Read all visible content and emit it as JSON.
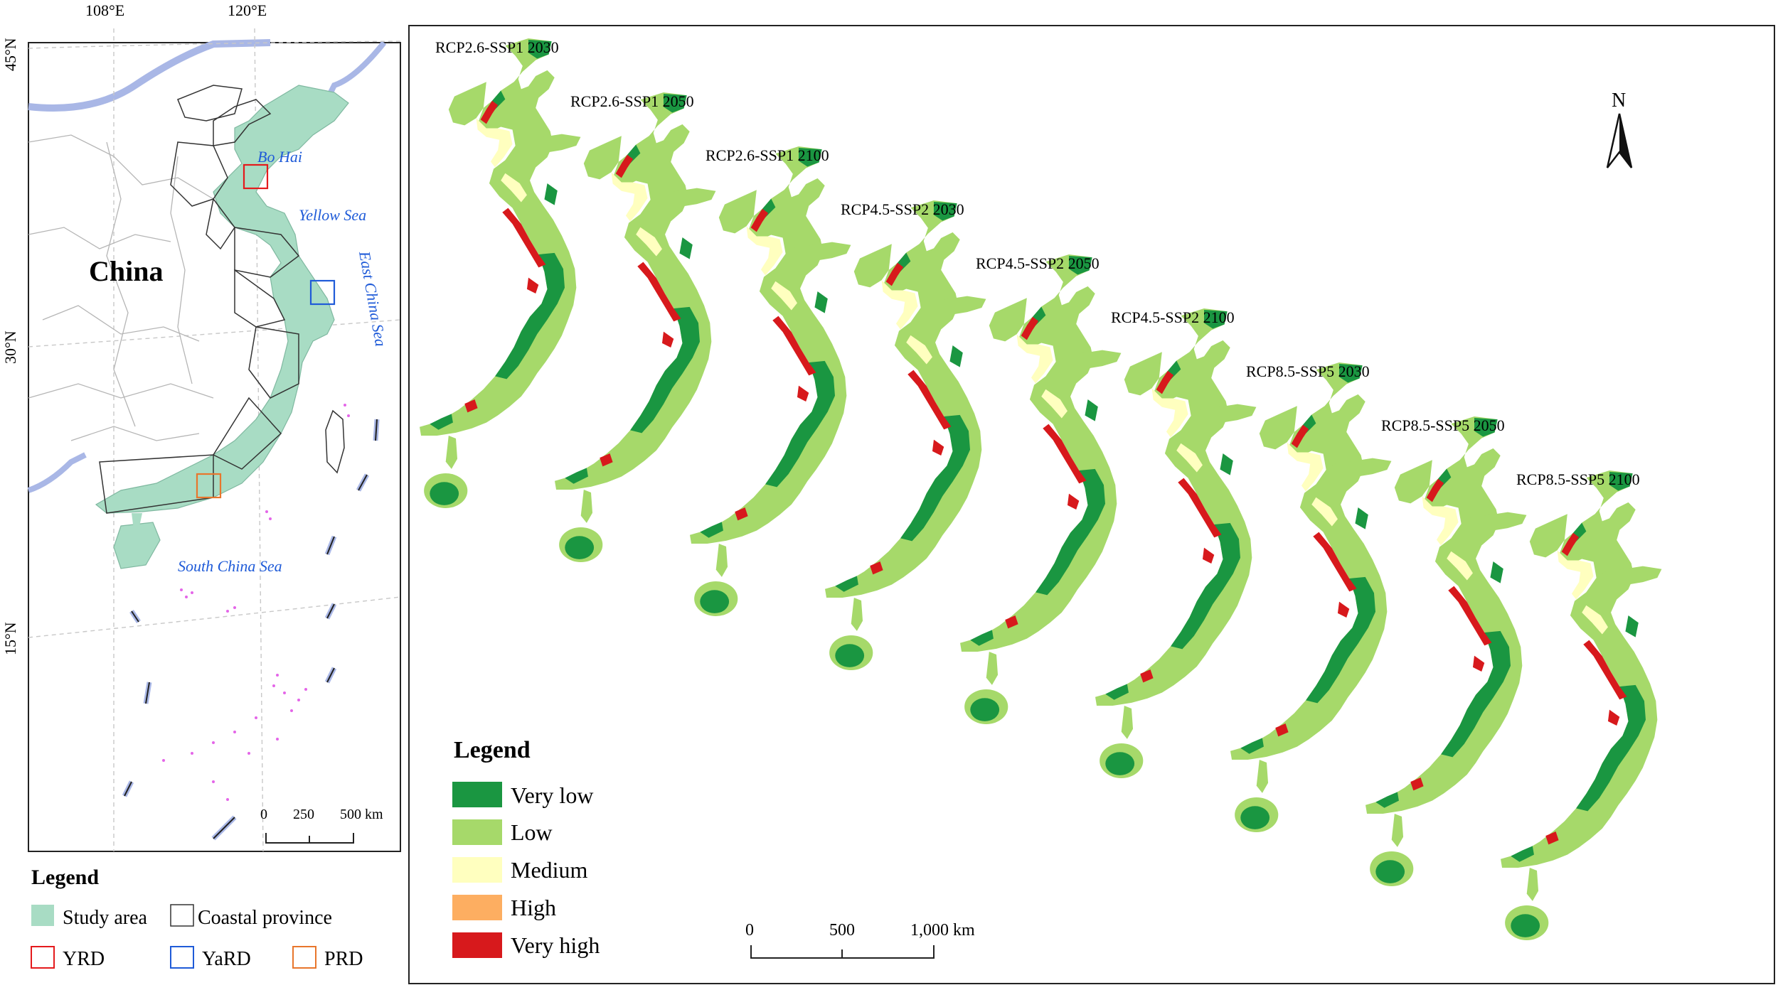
{
  "locator_map": {
    "lon_labels": [
      "108°E",
      "120°E"
    ],
    "lat_labels": [
      "45°N",
      "30°N",
      "15°N"
    ],
    "country_label": "China",
    "sea_labels": {
      "bohai": "Bo Hai",
      "yellow": "Yellow Sea",
      "east_china": "East China Sea",
      "south_china": "South China Sea"
    },
    "scale": {
      "ticks": [
        "0",
        "250",
        "500 km"
      ]
    }
  },
  "left_legend": {
    "title": "Legend",
    "items": [
      {
        "label": "Study area",
        "color": "#a8dcc4",
        "kind": "fill"
      },
      {
        "label": "Coastal province",
        "color": "#333333",
        "kind": "outline"
      },
      {
        "label": "YRD",
        "color": "#e41a1c",
        "kind": "outline"
      },
      {
        "label": "YaRD",
        "color": "#1f5bd8",
        "kind": "outline"
      },
      {
        "label": "PRD",
        "color": "#e8762c",
        "kind": "outline"
      }
    ]
  },
  "scenario_maps": [
    {
      "title": "RCP2.6-SSP1 2030"
    },
    {
      "title": "RCP2.6-SSP1 2050"
    },
    {
      "title": "RCP2.6-SSP1 2100"
    },
    {
      "title": "RCP4.5-SSP2 2030"
    },
    {
      "title": "RCP4.5-SSP2 2050"
    },
    {
      "title": "RCP4.5-SSP2 2100"
    },
    {
      "title": "RCP8.5-SSP5 2030"
    },
    {
      "title": "RCP8.5-SSP5 2050"
    },
    {
      "title": "RCP8.5-SSP5 2100"
    }
  ],
  "risk_legend": {
    "title": "Legend",
    "items": [
      {
        "label": "Very low",
        "color": "#1a9641"
      },
      {
        "label": "Low",
        "color": "#a6d96a"
      },
      {
        "label": "Medium",
        "color": "#ffffbf"
      },
      {
        "label": "High",
        "color": "#fdae61"
      },
      {
        "label": "Very high",
        "color": "#d7191c"
      }
    ]
  },
  "main_scale": {
    "ticks": [
      "0",
      "500",
      "1,000 km"
    ]
  },
  "north_arrow": {
    "label": "N"
  }
}
